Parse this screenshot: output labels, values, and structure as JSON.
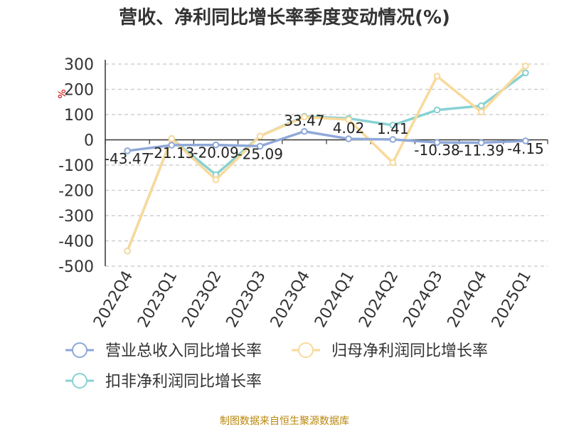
{
  "chart_data": {
    "type": "line",
    "title": "营收、净利同比增长率季度变动情况(%)",
    "y_unit": "%",
    "ylim": [
      -500,
      300
    ],
    "yticks": [
      300,
      200,
      100,
      0,
      -100,
      -200,
      -300,
      -400,
      -500
    ],
    "grid": true,
    "legend_position": "bottom",
    "categories": [
      "2022Q4",
      "2023Q1",
      "2023Q2",
      "2023Q3",
      "2023Q4",
      "2024Q1",
      "2024Q2",
      "2024Q3",
      "2024Q4",
      "2025Q1"
    ],
    "series": [
      {
        "name": "营业总收入同比增长率",
        "color": "#8fa8d8",
        "values": [
          -43.47,
          -21.13,
          -20.09,
          -25.09,
          33.47,
          4.02,
          1.41,
          -10.38,
          -11.39,
          -4.15
        ],
        "data_labels": [
          "-43.47",
          "-21.13",
          "-20.09",
          "-25.09",
          "33.47",
          "4.02",
          "1.41",
          "-10.38",
          "-11.39",
          "-4.15"
        ]
      },
      {
        "name": "归母净利润同比增长率",
        "color": "#f9d99a",
        "values": [
          -440,
          5,
          -158,
          15,
          90,
          80,
          -90,
          252,
          110,
          292
        ]
      },
      {
        "name": "扣非净利润同比增长率",
        "color": "#88d1d3",
        "values": [
          -440,
          5,
          -138,
          15,
          93,
          85,
          58,
          118,
          135,
          265
        ]
      }
    ]
  },
  "footer": {
    "source": "制图数据来自恒生聚源数据库"
  }
}
